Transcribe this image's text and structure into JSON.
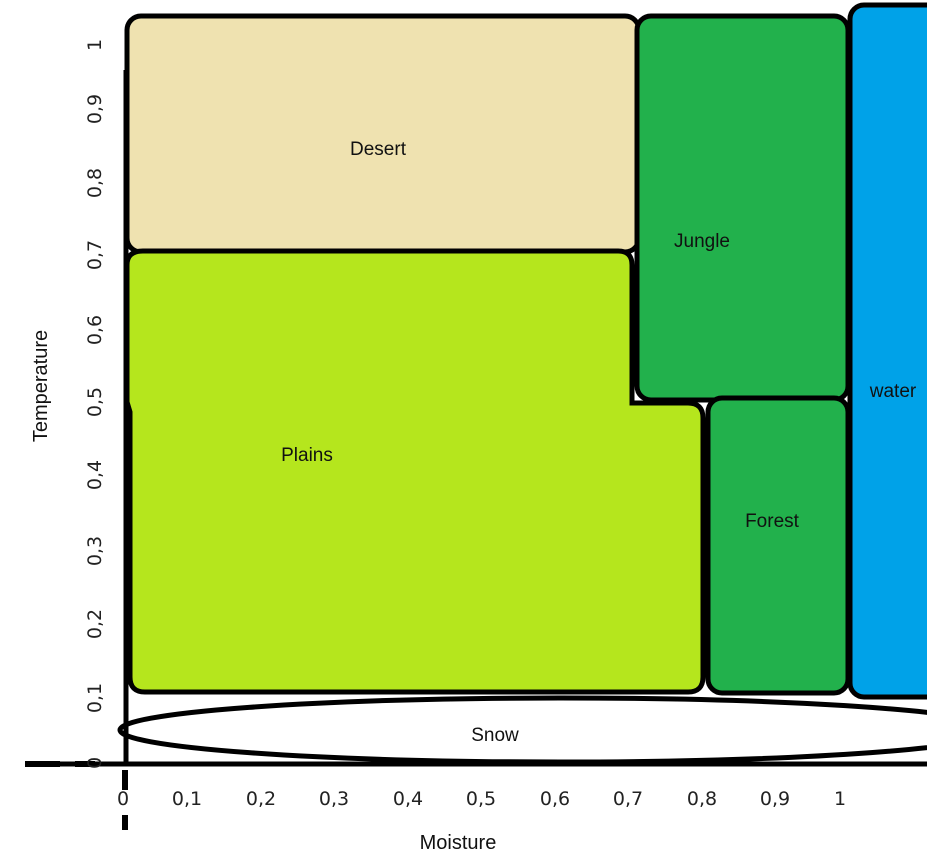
{
  "axes": {
    "x_title": "Moisture",
    "y_title": "Temperature",
    "x_ticks": [
      "0",
      "0,1",
      "0,2",
      "0,3",
      "0,4",
      "0,5",
      "0,6",
      "0,7",
      "0,8",
      "0,9",
      "1"
    ],
    "y_ticks": [
      "0",
      "0,1",
      "0,2",
      "0,3",
      "0,4",
      "0,5",
      "0,6",
      "0,7",
      "0,8",
      "0,9",
      "1"
    ]
  },
  "regions": {
    "desert": {
      "label": "Desert",
      "color": "#efe2b0"
    },
    "plains": {
      "label": "Plains",
      "color": "#b5e61d"
    },
    "jungle": {
      "label": "Jungle",
      "color": "#22b14c"
    },
    "forest": {
      "label": "Forest",
      "color": "#22b14c"
    },
    "water": {
      "label": "water",
      "color": "#00a2e8"
    },
    "snow": {
      "label": "Snow",
      "color": "#ffffff"
    }
  }
}
